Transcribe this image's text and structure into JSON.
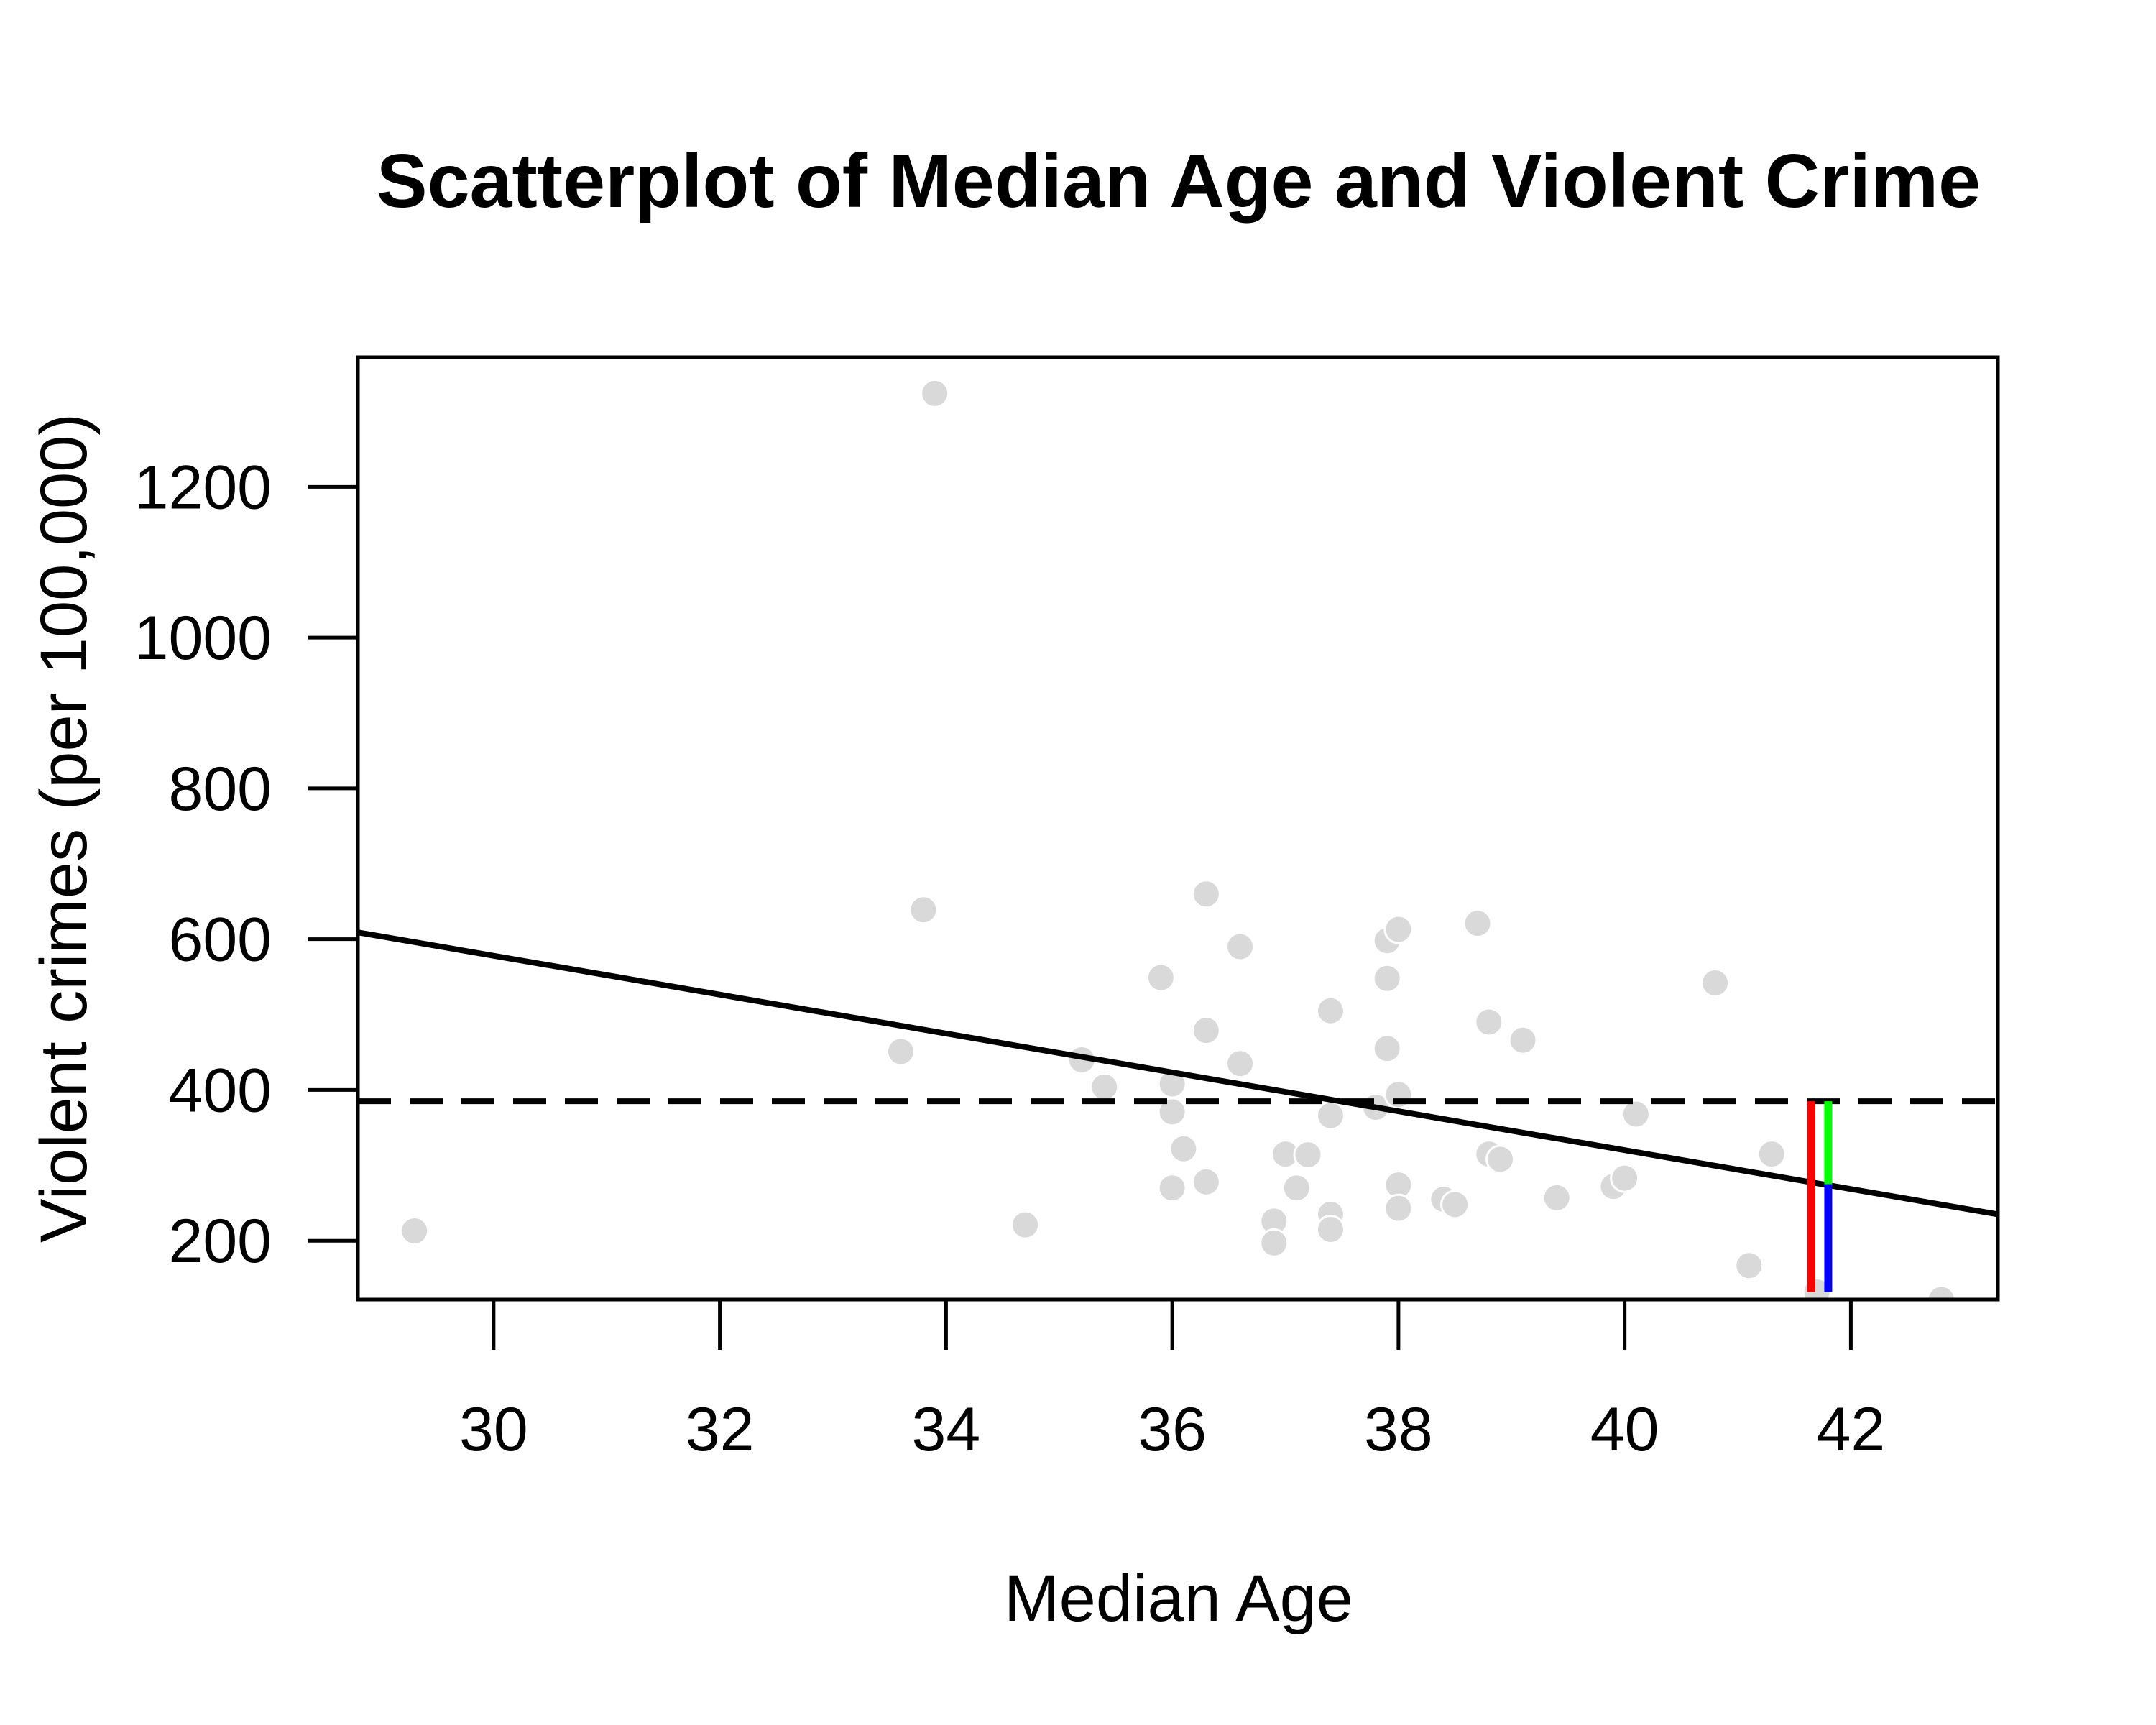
{
  "chart_data": {
    "type": "scatter",
    "title": "Scatterplot of Median Age and Violent Crime",
    "xlabel": "Median Age",
    "ylabel": "Violent crimes (per 100,000)",
    "xlim": [
      28.8,
      43.3
    ],
    "ylim": [
      122,
      1372
    ],
    "x_ticks": [
      30,
      32,
      34,
      36,
      38,
      40,
      42
    ],
    "y_ticks": [
      200,
      400,
      600,
      800,
      1000,
      1200
    ],
    "grid": false,
    "legend": "none",
    "point_color": "#d9d9d9",
    "points": [
      {
        "x": 29.3,
        "y": 213
      },
      {
        "x": 33.6,
        "y": 451
      },
      {
        "x": 33.8,
        "y": 639
      },
      {
        "x": 33.9,
        "y": 1324
      },
      {
        "x": 34.7,
        "y": 221
      },
      {
        "x": 35.2,
        "y": 440
      },
      {
        "x": 35.4,
        "y": 404
      },
      {
        "x": 35.9,
        "y": 549
      },
      {
        "x": 36.0,
        "y": 408
      },
      {
        "x": 36.0,
        "y": 371
      },
      {
        "x": 36.0,
        "y": 270
      },
      {
        "x": 36.1,
        "y": 322
      },
      {
        "x": 36.3,
        "y": 660
      },
      {
        "x": 36.3,
        "y": 479
      },
      {
        "x": 36.3,
        "y": 278
      },
      {
        "x": 36.6,
        "y": 590
      },
      {
        "x": 36.6,
        "y": 435
      },
      {
        "x": 36.9,
        "y": 226
      },
      {
        "x": 36.9,
        "y": 197
      },
      {
        "x": 37.0,
        "y": 315
      },
      {
        "x": 37.1,
        "y": 270
      },
      {
        "x": 37.2,
        "y": 314
      },
      {
        "x": 37.4,
        "y": 505
      },
      {
        "x": 37.4,
        "y": 366
      },
      {
        "x": 37.4,
        "y": 235
      },
      {
        "x": 37.4,
        "y": 215
      },
      {
        "x": 37.8,
        "y": 377
      },
      {
        "x": 37.9,
        "y": 598
      },
      {
        "x": 37.9,
        "y": 548
      },
      {
        "x": 37.9,
        "y": 455
      },
      {
        "x": 38.0,
        "y": 613
      },
      {
        "x": 38.0,
        "y": 394
      },
      {
        "x": 38.0,
        "y": 274
      },
      {
        "x": 38.0,
        "y": 243
      },
      {
        "x": 38.4,
        "y": 255
      },
      {
        "x": 38.5,
        "y": 248
      },
      {
        "x": 38.7,
        "y": 621
      },
      {
        "x": 38.8,
        "y": 490
      },
      {
        "x": 38.8,
        "y": 315
      },
      {
        "x": 38.9,
        "y": 308
      },
      {
        "x": 39.1,
        "y": 466
      },
      {
        "x": 39.4,
        "y": 257
      },
      {
        "x": 39.9,
        "y": 272
      },
      {
        "x": 40.0,
        "y": 283
      },
      {
        "x": 40.1,
        "y": 368
      },
      {
        "x": 40.8,
        "y": 542
      },
      {
        "x": 41.1,
        "y": 167
      },
      {
        "x": 41.3,
        "y": 315
      },
      {
        "x": 41.7,
        "y": 132
      },
      {
        "x": 42.8,
        "y": 122
      }
    ],
    "regression_line": {
      "x": [
        28.8,
        43.3
      ],
      "y": [
        609,
        235
      ],
      "color": "#000000"
    },
    "mean_line": {
      "y": 385,
      "style": "dashed",
      "color": "#000000"
    },
    "highlight": {
      "red": {
        "x": 41.65,
        "y_from": 132,
        "y_to": 385,
        "color": "#ff0000"
      },
      "green": {
        "x": 41.8,
        "y_from": 275,
        "y_to": 385,
        "color": "#00ff00"
      },
      "blue": {
        "x": 41.8,
        "y_from": 132,
        "y_to": 275,
        "color": "#0000ff"
      }
    }
  }
}
